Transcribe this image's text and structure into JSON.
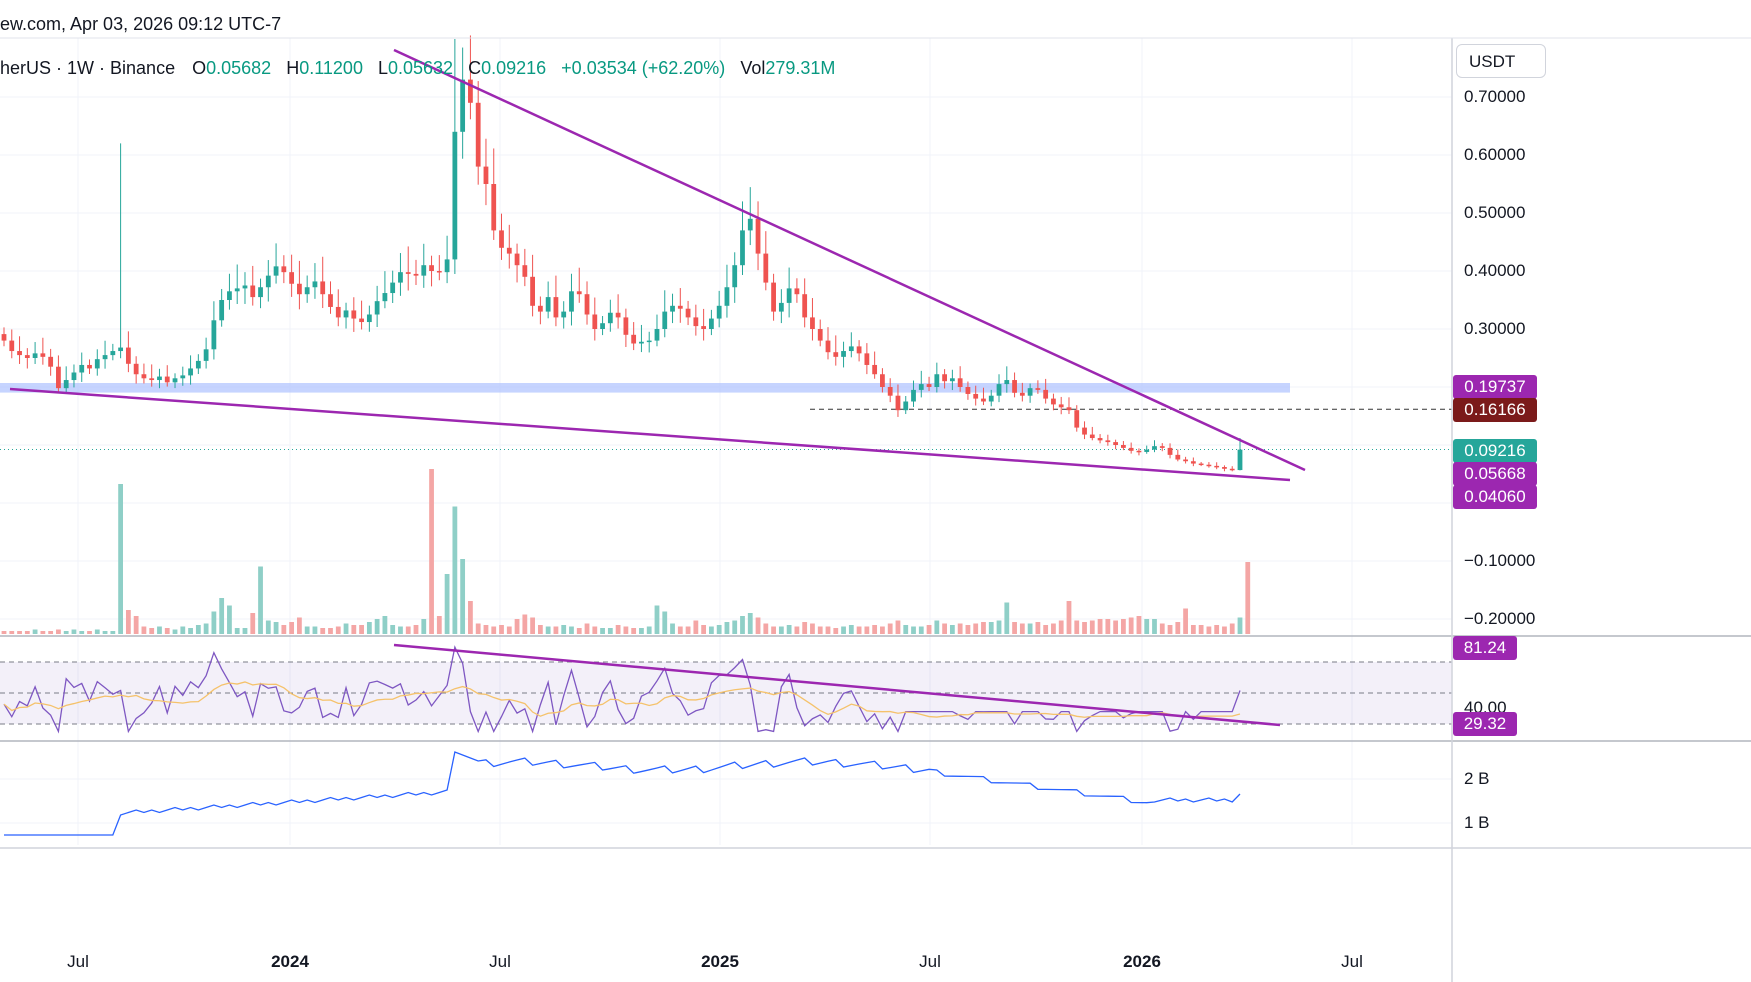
{
  "header": {
    "site_fragment": "ew.com,",
    "date": "Apr 03, 2026",
    "time": "09:12 UTC-7",
    "symbol_fragment": "herUS",
    "interval": "1W",
    "exchange": "Binance",
    "o_label": "O",
    "o_value": "0.05682",
    "h_label": "H",
    "h_value": "0.11200",
    "l_label": "L",
    "l_value": "0.05632",
    "c_label": "C",
    "c_value": "0.09216",
    "change": "+0.03534 (+62.20%)",
    "vol_label": "Vol",
    "vol_value": "279.31M"
  },
  "currency": "USDT",
  "colors": {
    "up": "#26a69a",
    "down": "#ef5350",
    "trendline": "#9c27b0",
    "support_zone": "#b3c6ff",
    "rsi": "#7e57c2",
    "rsi_ma": "#f5c26b",
    "indicator": "#2962ff"
  },
  "chart_data": {
    "type": "candlestick",
    "interval": "1W",
    "price_axis_ticks": [
      "0.70000",
      "0.60000",
      "0.50000",
      "0.40000",
      "0.30000",
      "−0.10000",
      "−0.20000"
    ],
    "price_tags": [
      {
        "label": "0.19737",
        "color": "#9c27b0"
      },
      {
        "label": "0.16166",
        "color": "#7b1a1a"
      },
      {
        "label": "0.09216",
        "color": "#26a69a"
      },
      {
        "label": "0.05668",
        "color": "#9c27b0"
      },
      {
        "label": "0.04060",
        "color": "#9c27b0"
      }
    ],
    "time_axis": [
      {
        "label": "Jul",
        "major": false
      },
      {
        "label": "2024",
        "major": true
      },
      {
        "label": "Jul",
        "major": false
      },
      {
        "label": "2025",
        "major": true
      },
      {
        "label": "Jul",
        "major": false
      },
      {
        "label": "2026",
        "major": true
      },
      {
        "label": "Jul",
        "major": false
      }
    ],
    "support_zone": [
      0.18,
      0.2
    ],
    "dashed_level": 0.16166,
    "last_close": 0.09216,
    "rsi": {
      "upper": "81.24",
      "mid": "40.00",
      "lower": "29.32"
    },
    "indicator_axis": [
      "2 B",
      "1 B"
    ],
    "closes": [
      0.28,
      0.262,
      0.255,
      0.25,
      0.258,
      0.252,
      0.235,
      0.198,
      0.212,
      0.225,
      0.238,
      0.232,
      0.248,
      0.255,
      0.262,
      0.268,
      0.24,
      0.222,
      0.215,
      0.212,
      0.218,
      0.208,
      0.215,
      0.22,
      0.232,
      0.245,
      0.265,
      0.315,
      0.35,
      0.365,
      0.37,
      0.375,
      0.355,
      0.372,
      0.392,
      0.408,
      0.398,
      0.378,
      0.36,
      0.372,
      0.382,
      0.36,
      0.338,
      0.32,
      0.332,
      0.318,
      0.312,
      0.325,
      0.348,
      0.362,
      0.38,
      0.398,
      0.395,
      0.392,
      0.41,
      0.4,
      0.398,
      0.42,
      0.64,
      0.73,
      0.69,
      0.58,
      0.55,
      0.47,
      0.44,
      0.43,
      0.41,
      0.39,
      0.34,
      0.33,
      0.355,
      0.32,
      0.33,
      0.365,
      0.36,
      0.325,
      0.3,
      0.31,
      0.328,
      0.32,
      0.29,
      0.275,
      0.278,
      0.28,
      0.3,
      0.33,
      0.34,
      0.335,
      0.32,
      0.305,
      0.3,
      0.318,
      0.34,
      0.372,
      0.41,
      0.47,
      0.49,
      0.43,
      0.38,
      0.33,
      0.345,
      0.37,
      0.36,
      0.32,
      0.3,
      0.28,
      0.26,
      0.252,
      0.262,
      0.27,
      0.258,
      0.238,
      0.222,
      0.2,
      0.185,
      0.16,
      0.175,
      0.195,
      0.205,
      0.2,
      0.222,
      0.21,
      0.215,
      0.2,
      0.188,
      0.18,
      0.175,
      0.185,
      0.205,
      0.212,
      0.19,
      0.185,
      0.198,
      0.195,
      0.18,
      0.17,
      0.165,
      0.16,
      0.13,
      0.118,
      0.112,
      0.108,
      0.105,
      0.1,
      0.095,
      0.09,
      0.088,
      0.092,
      0.098,
      0.095,
      0.083,
      0.075,
      0.072,
      0.068,
      0.066,
      0.064,
      0.062,
      0.059,
      0.057,
      0.092
    ],
    "volumes": [
      0.02,
      0.02,
      0.02,
      0.02,
      0.03,
      0.02,
      0.02,
      0.03,
      0.02,
      0.03,
      0.02,
      0.02,
      0.03,
      0.02,
      0.02,
      1.0,
      0.16,
      0.12,
      0.05,
      0.04,
      0.05,
      0.04,
      0.03,
      0.05,
      0.04,
      0.06,
      0.07,
      0.15,
      0.24,
      0.19,
      0.04,
      0.04,
      0.14,
      0.45,
      0.09,
      0.08,
      0.06,
      0.08,
      0.11,
      0.05,
      0.05,
      0.04,
      0.04,
      0.05,
      0.07,
      0.06,
      0.06,
      0.08,
      0.1,
      0.12,
      0.06,
      0.05,
      0.05,
      0.06,
      0.1,
      1.1,
      0.12,
      0.4,
      0.85,
      0.5,
      0.22,
      0.07,
      0.06,
      0.05,
      0.06,
      0.05,
      0.1,
      0.13,
      0.11,
      0.06,
      0.05,
      0.05,
      0.06,
      0.05,
      0.04,
      0.07,
      0.05,
      0.04,
      0.04,
      0.06,
      0.05,
      0.04,
      0.04,
      0.05,
      0.19,
      0.15,
      0.07,
      0.05,
      0.05,
      0.09,
      0.06,
      0.05,
      0.06,
      0.08,
      0.09,
      0.12,
      0.14,
      0.11,
      0.07,
      0.05,
      0.05,
      0.06,
      0.05,
      0.08,
      0.07,
      0.05,
      0.05,
      0.04,
      0.05,
      0.06,
      0.05,
      0.05,
      0.06,
      0.05,
      0.07,
      0.09,
      0.06,
      0.05,
      0.05,
      0.06,
      0.09,
      0.07,
      0.06,
      0.07,
      0.06,
      0.07,
      0.08,
      0.08,
      0.09,
      0.21,
      0.08,
      0.07,
      0.07,
      0.08,
      0.06,
      0.07,
      0.09,
      0.22,
      0.09,
      0.08,
      0.09,
      0.1,
      0.1,
      0.09,
      0.1,
      0.11,
      0.12,
      0.1,
      0.1,
      0.07,
      0.06,
      0.08,
      0.17,
      0.06,
      0.06,
      0.05,
      0.06,
      0.05,
      0.07,
      0.11,
      0.48
    ]
  }
}
